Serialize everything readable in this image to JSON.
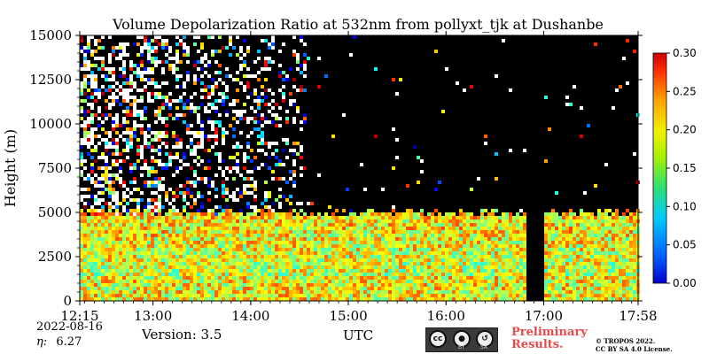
{
  "chart_data": {
    "type": "heatmap",
    "title": "Volume Depolarization Ratio at 532nm from pollyxt_tjk at Dushanbe",
    "xlabel": "UTC",
    "ylabel": "Height (m)",
    "x_range": [
      "12:15",
      "17:58"
    ],
    "x_ticks": [
      "12:15",
      "13:00",
      "14:00",
      "15:00",
      "16:00",
      "17:00",
      "17:58"
    ],
    "ylim": [
      0,
      15000
    ],
    "y_ticks": [
      "0",
      "2500",
      "5000",
      "7500",
      "10000",
      "12500",
      "15000"
    ],
    "colorbar": {
      "min": 0.0,
      "max": 0.3,
      "ticks": [
        "0.00",
        "0.05",
        "0.10",
        "0.15",
        "0.20",
        "0.25",
        "0.30"
      ],
      "colormap": "jet"
    },
    "features": {
      "aerosol_layer_top_m": 5000,
      "data_gap": [
        "16:50",
        "17:00"
      ]
    }
  },
  "meta": {
    "date": "2022-08-16",
    "eta_label": "η:",
    "eta_value": "6.27",
    "version": "Version: 3.5"
  },
  "license": {
    "badge_cc": "cc",
    "badge_by": "BY",
    "badge_sa": "SA",
    "preliminary_line1": "Preliminary",
    "preliminary_line2": "Results.",
    "copyright_line1": "© TROPOS 2022.",
    "copyright_line2": "CC BY SA 4.0 License."
  }
}
